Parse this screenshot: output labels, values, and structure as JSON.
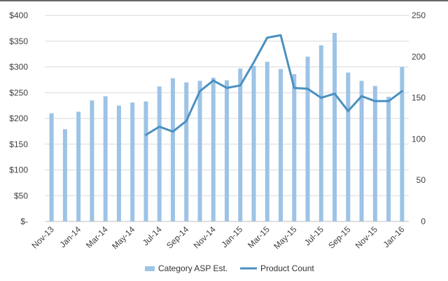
{
  "chart_data": {
    "type": "bar",
    "categories": [
      "Nov-13",
      "Dec-13",
      "Jan-14",
      "Feb-14",
      "Mar-14",
      "Apr-14",
      "May-14",
      "Jun-14",
      "Jul-14",
      "Aug-14",
      "Sep-14",
      "Oct-14",
      "Nov-14",
      "Dec-14",
      "Jan-15",
      "Feb-15",
      "Mar-15",
      "Apr-15",
      "May-15",
      "Jun-15",
      "Jul-15",
      "Aug-15",
      "Sep-15",
      "Oct-15",
      "Nov-15",
      "Dec-15",
      "Jan-16"
    ],
    "x_tick_labels": [
      "Nov-13",
      "Jan-14",
      "Mar-14",
      "May-14",
      "Jul-14",
      "Sep-14",
      "Nov-14",
      "Jan-15",
      "Mar-15",
      "May-15",
      "Jul-15",
      "Sep-15",
      "Nov-15",
      "Jan-16"
    ],
    "series": [
      {
        "name": "Category ASP Est.",
        "type": "bar",
        "axis": "left",
        "color": "#9dc3e6",
        "values": [
          210,
          179,
          213,
          235,
          243,
          225,
          231,
          233,
          262,
          278,
          270,
          273,
          279,
          274,
          297,
          302,
          310,
          296,
          286,
          320,
          342,
          366,
          289,
          273,
          263,
          242,
          300
        ]
      },
      {
        "name": "Product Count",
        "type": "line",
        "axis": "right",
        "color": "#4a90c0",
        "values": [
          null,
          null,
          null,
          null,
          null,
          null,
          null,
          105,
          115,
          109,
          122,
          158,
          171,
          162,
          165,
          193,
          223,
          226,
          162,
          161,
          150,
          155,
          134,
          152,
          146,
          146,
          158
        ]
      }
    ],
    "y_left": {
      "min": 0,
      "max": 400,
      "ticks": [
        0,
        50,
        100,
        150,
        200,
        250,
        300,
        350,
        400
      ],
      "tick_labels": [
        "$-",
        "$50",
        "$100",
        "$150",
        "$200",
        "$250",
        "$300",
        "$350",
        "$400"
      ]
    },
    "y_right": {
      "min": 0,
      "max": 250,
      "ticks": [
        0,
        50,
        100,
        150,
        200,
        250
      ],
      "tick_labels": [
        "0",
        "50",
        "100",
        "150",
        "200",
        "250"
      ]
    },
    "grid": true,
    "legend_position": "bottom",
    "title": "",
    "xlabel": "",
    "ylabel": ""
  }
}
